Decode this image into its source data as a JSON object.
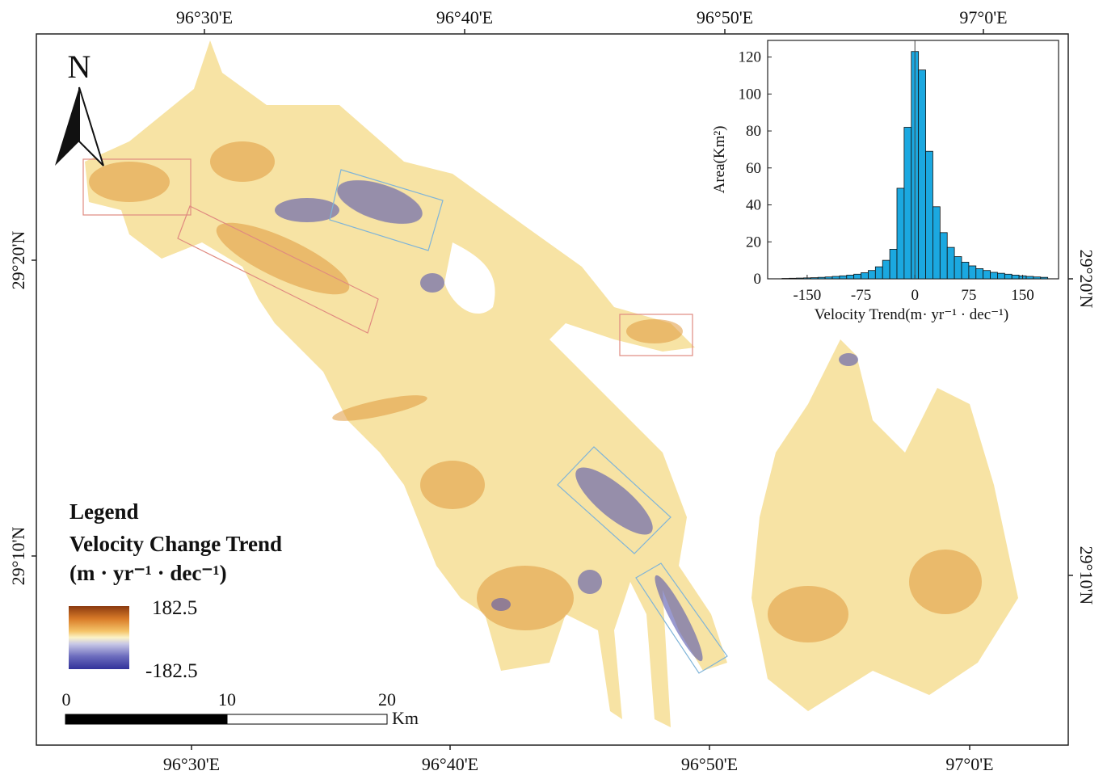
{
  "map": {
    "north": "N",
    "top_lon_labels": [
      "96°30'E",
      "96°40'E",
      "96°50'E",
      "97°0'E"
    ],
    "bottom_lon_labels": [
      "96°30'E",
      "96°40'E",
      "96°50'E",
      "97°0'E"
    ],
    "left_lat_labels": [
      "29°20'N",
      "29°10'N"
    ],
    "right_lat_labels": [
      "29°20'N",
      "29°10'N"
    ],
    "legend": {
      "title": "Legend",
      "subtitle": "Velocity Change Trend",
      "unit": "(m · yr⁻¹ · dec⁻¹)",
      "max_label": "182.5",
      "min_label": "-182.5"
    },
    "scale_bar": {
      "labels": [
        "0",
        "10",
        "20"
      ],
      "unit": "Km"
    }
  },
  "chart_data": {
    "type": "histogram",
    "xlabel": "Velocity Trend(m· yr⁻¹ · dec⁻¹)",
    "ylabel": "Area(Km²)",
    "color": "#1ba8e0",
    "bins": [
      -185,
      -175,
      -165,
      -155,
      -145,
      -135,
      -125,
      -115,
      -105,
      -95,
      -85,
      -75,
      -65,
      -55,
      -45,
      -35,
      -25,
      -15,
      -5,
      5,
      15,
      25,
      35,
      45,
      55,
      65,
      75,
      85,
      95,
      105,
      115,
      125,
      135,
      145,
      155,
      165,
      175,
      185
    ],
    "values": [
      0.2,
      0.3,
      0.4,
      0.5,
      0.6,
      0.8,
      1,
      1.3,
      1.6,
      2,
      2.5,
      3.3,
      4.5,
      6.5,
      10,
      16,
      49,
      82,
      123,
      113,
      69,
      39,
      25,
      17,
      12,
      9,
      7,
      5.5,
      4.5,
      3.5,
      3,
      2.5,
      2,
      1.6,
      1.3,
      1,
      0.8
    ],
    "xlim": [
      -205,
      200
    ],
    "ylim": [
      0,
      129
    ],
    "xticks": [
      -150,
      -75,
      0,
      75,
      150
    ],
    "yticks": [
      0,
      20,
      40,
      60,
      80,
      100,
      120
    ]
  }
}
